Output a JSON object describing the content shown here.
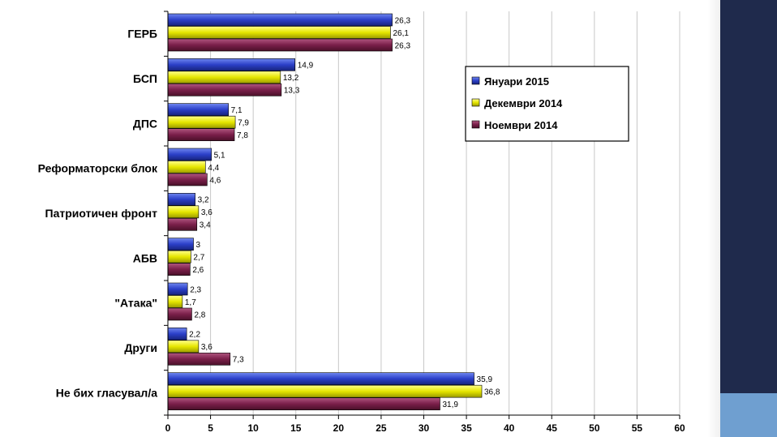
{
  "colors": {
    "series": [
      "#2b3fc8",
      "#e6e600",
      "#7a1f4a"
    ],
    "grid": "#c8c8c8",
    "axis": "#000000",
    "side_dark": "#1f2a4c",
    "side_light": "#6f9fd0"
  },
  "chart_data": {
    "type": "bar",
    "orientation": "horizontal",
    "categories": [
      "ГЕРБ",
      "БСП",
      "ДПС",
      "Реформаторски блок",
      "Патриотичен фронт",
      "АБВ",
      "\"Атака\"",
      "Други",
      "Не бих гласувал/а"
    ],
    "series": [
      {
        "name": "Януари 2015",
        "values": [
          26.3,
          14.9,
          7.1,
          5.1,
          3.2,
          3,
          2.3,
          2.2,
          35.9
        ],
        "labels": [
          "26,3",
          "14,9",
          "7,1",
          "5,1",
          "3,2",
          "3",
          "2,3",
          "2,2",
          "35,9"
        ]
      },
      {
        "name": "Декември 2014",
        "values": [
          26.1,
          13.2,
          7.9,
          4.4,
          3.6,
          2.7,
          1.7,
          3.6,
          36.8
        ],
        "labels": [
          "26,1",
          "13,2",
          "7,9",
          "4,4",
          "3,6",
          "2,7",
          "1,7",
          "3,6",
          "36,8"
        ]
      },
      {
        "name": "Ноември 2014",
        "values": [
          26.3,
          13.3,
          7.8,
          4.6,
          3.4,
          2.6,
          2.8,
          7.3,
          31.9
        ],
        "labels": [
          "26,3",
          "13,3",
          "7,8",
          "4,6",
          "3,4",
          "2,6",
          "2,8",
          "7,3",
          "31,9"
        ]
      }
    ],
    "xlim": [
      0,
      60
    ],
    "xticks": [
      0,
      5,
      10,
      15,
      20,
      25,
      30,
      35,
      40,
      45,
      50,
      55,
      60
    ],
    "grid": true,
    "legend": "top-right",
    "title": "",
    "xlabel": "",
    "ylabel": ""
  }
}
